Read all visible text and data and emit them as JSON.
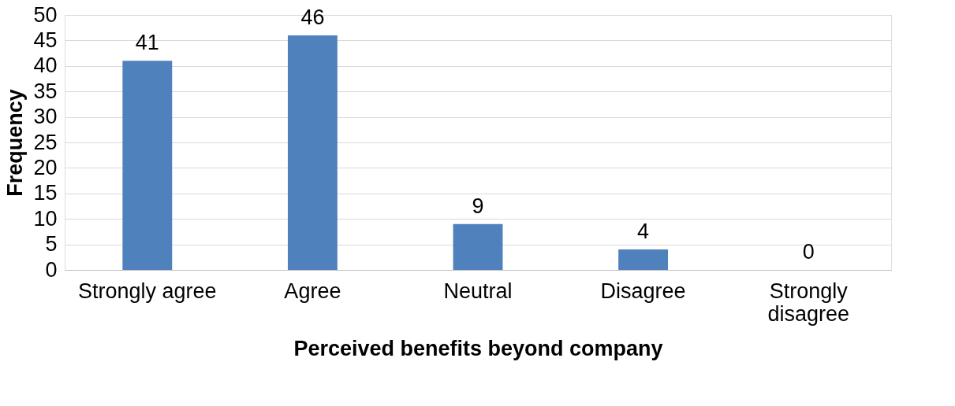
{
  "chart_data": {
    "type": "bar",
    "xlabel": "Perceived benefits beyond company",
    "ylabel": "Frequency",
    "categories": [
      "Strongly agree",
      "Agree",
      "Neutral",
      "Disagree",
      "Strongly disagree"
    ],
    "values": [
      41,
      46,
      9,
      4,
      0
    ],
    "color": "#4f81bd",
    "ylim": [
      0,
      50
    ],
    "yticks": [
      0,
      5,
      10,
      15,
      20,
      25,
      30,
      35,
      40,
      45,
      50
    ],
    "grid": "y",
    "data_labels": true
  }
}
